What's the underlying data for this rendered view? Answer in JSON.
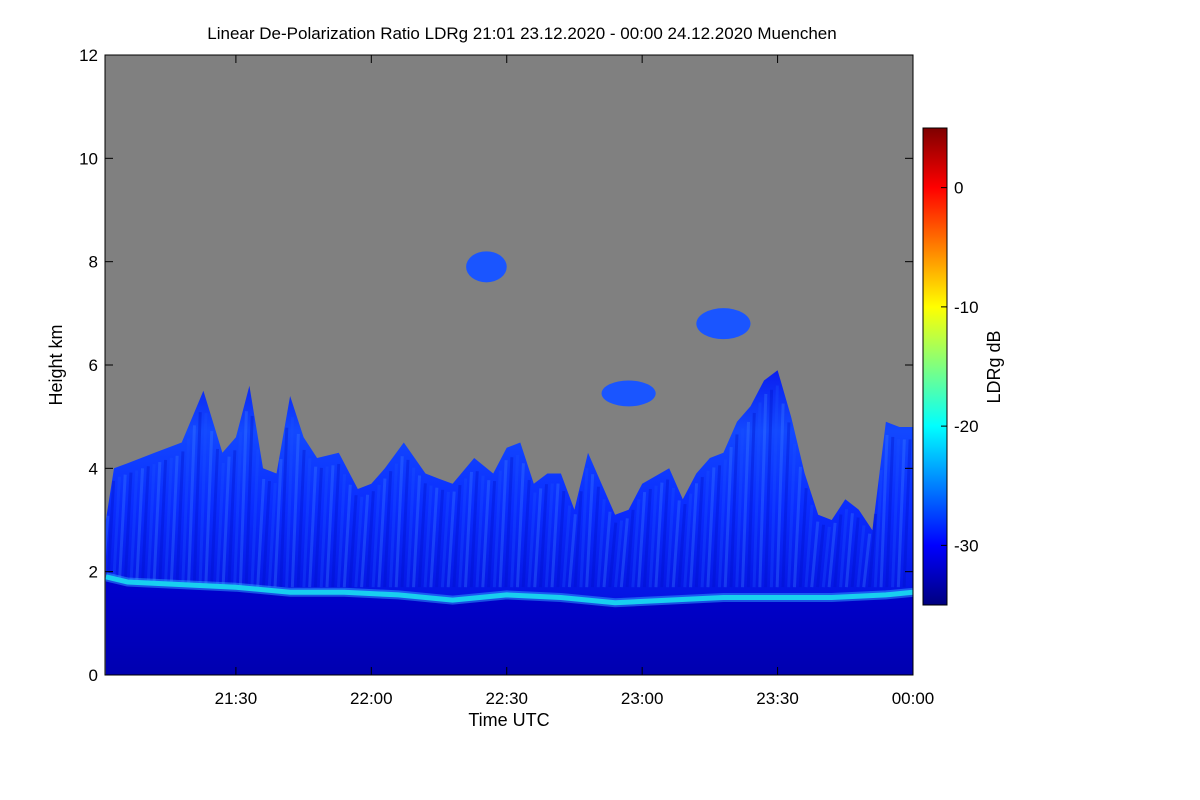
{
  "chart_data": {
    "type": "heatmap",
    "title": "Linear De-Polarization Ratio LDRg   21:01 23.12.2020 - 00:00 24.12.2020 Muenchen",
    "xlabel": "Time UTC",
    "ylabel": "Height km",
    "x_range": [
      "21:01",
      "00:00"
    ],
    "x_ticks": [
      "21:30",
      "22:00",
      "22:30",
      "23:00",
      "23:30",
      "00:00"
    ],
    "x_tick_hours": [
      21.5,
      22.0,
      22.5,
      23.0,
      23.5,
      24.0
    ],
    "x_min_hours": 21.0167,
    "x_max_hours": 24.0,
    "ylim": [
      0,
      12
    ],
    "y_ticks": [
      0,
      2,
      4,
      6,
      8,
      10,
      12
    ],
    "colorbar": {
      "label": "LDRg dB",
      "range": [
        -35,
        5
      ],
      "ticks": [
        0,
        -10,
        -20,
        -30
      ],
      "colormap": "jet"
    },
    "no_signal_color": "#808080",
    "cloud_top_profile_km": [
      [
        21.02,
        3.0
      ],
      [
        21.05,
        4.0
      ],
      [
        21.1,
        4.1
      ],
      [
        21.2,
        4.3
      ],
      [
        21.3,
        4.5
      ],
      [
        21.38,
        5.5
      ],
      [
        21.45,
        4.3
      ],
      [
        21.5,
        4.6
      ],
      [
        21.55,
        5.6
      ],
      [
        21.6,
        4.0
      ],
      [
        21.65,
        3.9
      ],
      [
        21.7,
        5.4
      ],
      [
        21.75,
        4.6
      ],
      [
        21.8,
        4.2
      ],
      [
        21.88,
        4.3
      ],
      [
        21.95,
        3.6
      ],
      [
        22.0,
        3.7
      ],
      [
        22.05,
        4.0
      ],
      [
        22.12,
        4.5
      ],
      [
        22.2,
        3.9
      ],
      [
        22.25,
        3.8
      ],
      [
        22.3,
        3.7
      ],
      [
        22.38,
        4.2
      ],
      [
        22.45,
        3.9
      ],
      [
        22.5,
        4.4
      ],
      [
        22.55,
        4.5
      ],
      [
        22.6,
        3.7
      ],
      [
        22.65,
        3.9
      ],
      [
        22.7,
        3.9
      ],
      [
        22.75,
        3.2
      ],
      [
        22.8,
        4.3
      ],
      [
        22.85,
        3.7
      ],
      [
        22.9,
        3.1
      ],
      [
        22.95,
        3.2
      ],
      [
        23.0,
        3.7
      ],
      [
        23.1,
        4.0
      ],
      [
        23.15,
        3.4
      ],
      [
        23.2,
        3.9
      ],
      [
        23.25,
        4.2
      ],
      [
        23.3,
        4.3
      ],
      [
        23.35,
        4.9
      ],
      [
        23.4,
        5.2
      ],
      [
        23.45,
        5.7
      ],
      [
        23.5,
        5.9
      ],
      [
        23.55,
        5.0
      ],
      [
        23.6,
        3.9
      ],
      [
        23.65,
        3.1
      ],
      [
        23.7,
        3.0
      ],
      [
        23.75,
        3.4
      ],
      [
        23.8,
        3.2
      ],
      [
        23.85,
        2.8
      ],
      [
        23.9,
        4.9
      ],
      [
        23.95,
        4.8
      ],
      [
        24.0,
        4.8
      ]
    ],
    "boundary_layer_top_km": [
      [
        21.02,
        1.9
      ],
      [
        21.1,
        1.8
      ],
      [
        21.3,
        1.75
      ],
      [
        21.5,
        1.7
      ],
      [
        21.7,
        1.6
      ],
      [
        21.9,
        1.6
      ],
      [
        22.1,
        1.55
      ],
      [
        22.3,
        1.45
      ],
      [
        22.5,
        1.55
      ],
      [
        22.7,
        1.5
      ],
      [
        22.9,
        1.4
      ],
      [
        23.1,
        1.45
      ],
      [
        23.3,
        1.5
      ],
      [
        23.5,
        1.5
      ],
      [
        23.7,
        1.5
      ],
      [
        23.9,
        1.55
      ],
      [
        24.0,
        1.6
      ]
    ],
    "elevated_patches": [
      {
        "x": [
          22.85,
          23.05
        ],
        "y": [
          5.2,
          5.7
        ]
      },
      {
        "x": [
          23.2,
          23.4
        ],
        "y": [
          6.5,
          7.1
        ]
      },
      {
        "x": [
          22.35,
          22.5
        ],
        "y": [
          7.6,
          8.2
        ]
      }
    ]
  }
}
